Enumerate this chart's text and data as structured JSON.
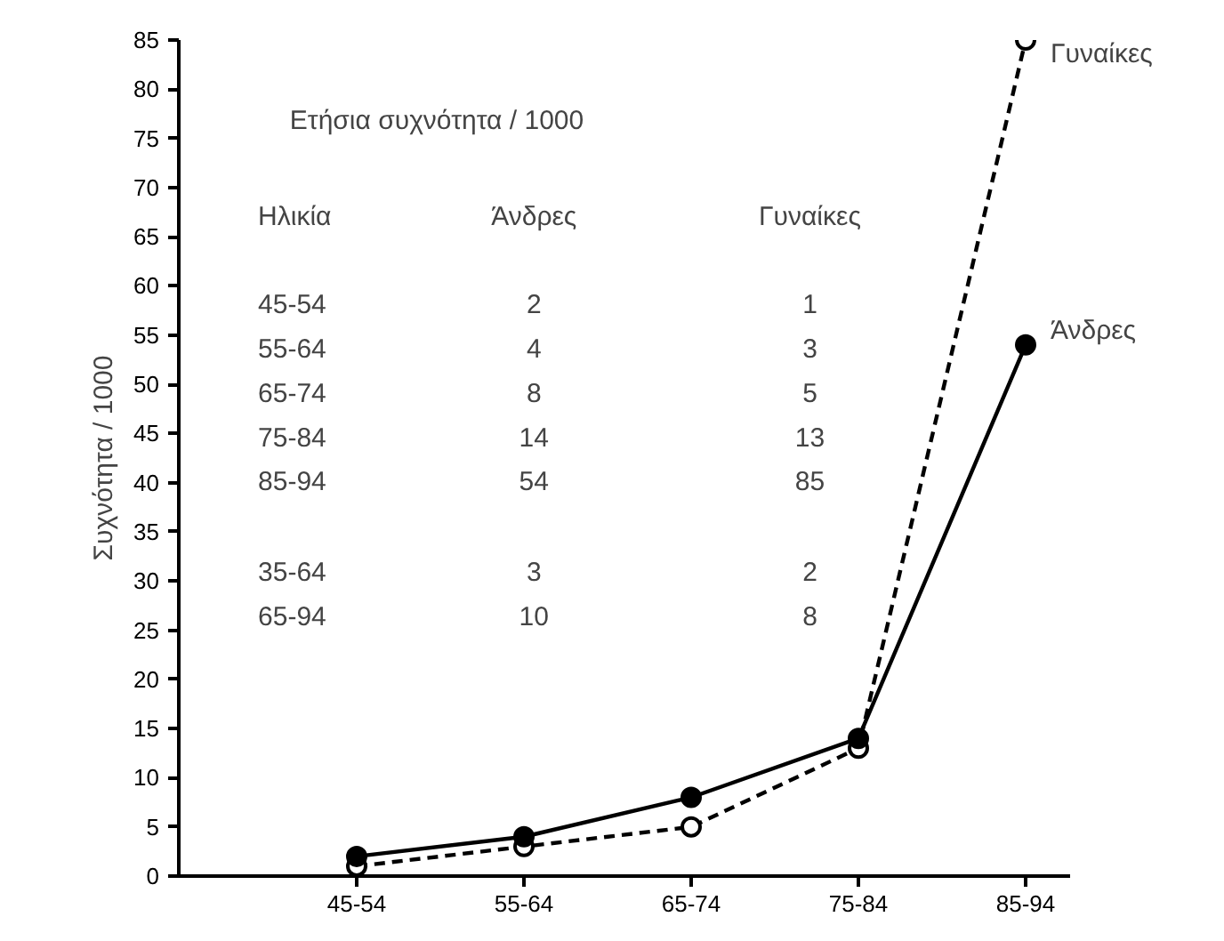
{
  "chart_data": {
    "type": "line",
    "ylabel": "Συχνότητα / 1000",
    "categories": [
      "45-54",
      "55-64",
      "65-74",
      "75-84",
      "85-94"
    ],
    "series": [
      {
        "name": "Άνδρες",
        "color": "#000000",
        "values": [
          2,
          4,
          8,
          14,
          54
        ],
        "line_style": "solid",
        "marker": "circle"
      },
      {
        "name": "Γυναίκες",
        "color": "#000000",
        "values": [
          1,
          3,
          5,
          13,
          85
        ],
        "line_style": "dashed",
        "marker": "circle"
      }
    ],
    "ylim": [
      0,
      85
    ],
    "yticks": [
      0,
      5,
      10,
      15,
      20,
      25,
      30,
      35,
      40,
      45,
      50,
      55,
      60,
      65,
      70,
      75,
      80,
      85
    ],
    "grid": false,
    "annotations": [
      "Ετήσια συχνότητα / 1000",
      "Ηλικία",
      "Άνδρες",
      "Γυναίκες",
      "45-54",
      "2",
      "1",
      "55-64",
      "4",
      "3",
      "65-74",
      "8",
      "5",
      "75-84",
      "14",
      "13",
      "85-94",
      "54",
      "85",
      "35-64",
      "3",
      "2",
      "65-94",
      "10",
      "8"
    ]
  }
}
